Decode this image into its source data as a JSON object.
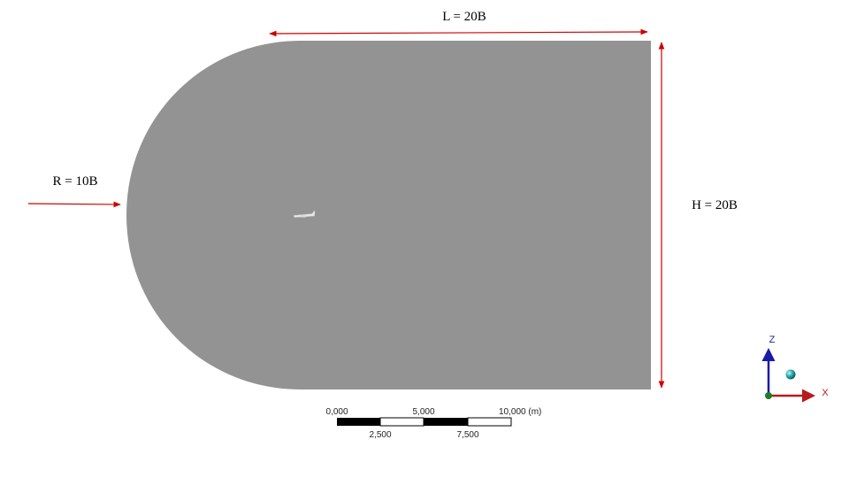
{
  "dimensions": {
    "length_label": "L = 20B",
    "height_label": "H = 20B",
    "radius_label": "R = 10B"
  },
  "scale_bar": {
    "top_labels": [
      "0,000",
      "5,000",
      "10,000 (m)"
    ],
    "bottom_labels": [
      "2,500",
      "7,500"
    ]
  },
  "triad": {
    "z_label": "Z",
    "x_label": "X"
  },
  "colors": {
    "domain_fill": "#939393",
    "dimension_arrow": "#cc0000",
    "z_axis": "#1a1aa8",
    "x_axis": "#b81a1a",
    "triad_ball": "#1fa3a3"
  }
}
